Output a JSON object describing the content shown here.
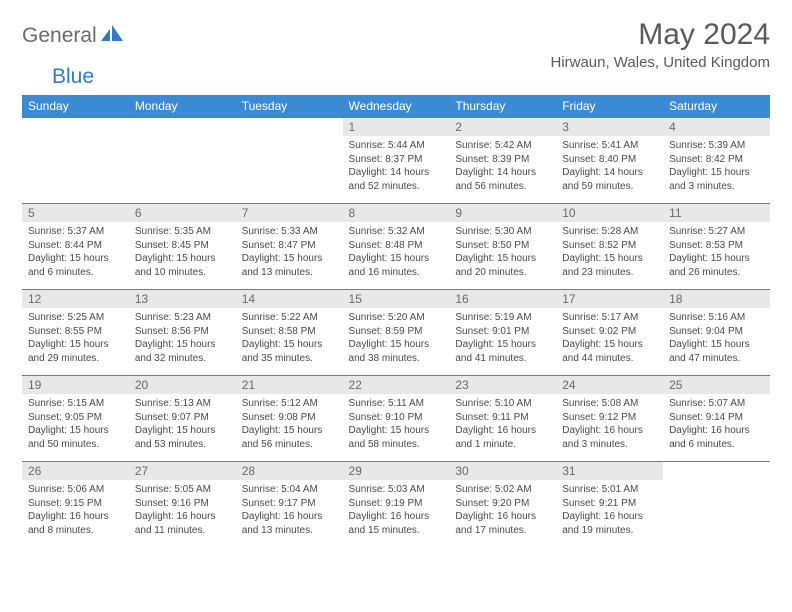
{
  "brand": {
    "part1": "General",
    "part2": "Blue"
  },
  "title": "May 2024",
  "location": "Hirwaun, Wales, United Kingdom",
  "colors": {
    "header_bg": "#3b8bd4",
    "header_text": "#ffffff",
    "daynum_bg": "#e8e8e8",
    "border": "#3b8bd4",
    "body_text": "#4a4a4a",
    "title_text": "#5a5a5a"
  },
  "weekdays": [
    "Sunday",
    "Monday",
    "Tuesday",
    "Wednesday",
    "Thursday",
    "Friday",
    "Saturday"
  ],
  "grid": [
    [
      {
        "empty": true
      },
      {
        "empty": true
      },
      {
        "empty": true
      },
      {
        "day": "1",
        "sunrise": "Sunrise: 5:44 AM",
        "sunset": "Sunset: 8:37 PM",
        "daylight": "Daylight: 14 hours and 52 minutes."
      },
      {
        "day": "2",
        "sunrise": "Sunrise: 5:42 AM",
        "sunset": "Sunset: 8:39 PM",
        "daylight": "Daylight: 14 hours and 56 minutes."
      },
      {
        "day": "3",
        "sunrise": "Sunrise: 5:41 AM",
        "sunset": "Sunset: 8:40 PM",
        "daylight": "Daylight: 14 hours and 59 minutes."
      },
      {
        "day": "4",
        "sunrise": "Sunrise: 5:39 AM",
        "sunset": "Sunset: 8:42 PM",
        "daylight": "Daylight: 15 hours and 3 minutes."
      }
    ],
    [
      {
        "day": "5",
        "sunrise": "Sunrise: 5:37 AM",
        "sunset": "Sunset: 8:44 PM",
        "daylight": "Daylight: 15 hours and 6 minutes."
      },
      {
        "day": "6",
        "sunrise": "Sunrise: 5:35 AM",
        "sunset": "Sunset: 8:45 PM",
        "daylight": "Daylight: 15 hours and 10 minutes."
      },
      {
        "day": "7",
        "sunrise": "Sunrise: 5:33 AM",
        "sunset": "Sunset: 8:47 PM",
        "daylight": "Daylight: 15 hours and 13 minutes."
      },
      {
        "day": "8",
        "sunrise": "Sunrise: 5:32 AM",
        "sunset": "Sunset: 8:48 PM",
        "daylight": "Daylight: 15 hours and 16 minutes."
      },
      {
        "day": "9",
        "sunrise": "Sunrise: 5:30 AM",
        "sunset": "Sunset: 8:50 PM",
        "daylight": "Daylight: 15 hours and 20 minutes."
      },
      {
        "day": "10",
        "sunrise": "Sunrise: 5:28 AM",
        "sunset": "Sunset: 8:52 PM",
        "daylight": "Daylight: 15 hours and 23 minutes."
      },
      {
        "day": "11",
        "sunrise": "Sunrise: 5:27 AM",
        "sunset": "Sunset: 8:53 PM",
        "daylight": "Daylight: 15 hours and 26 minutes."
      }
    ],
    [
      {
        "day": "12",
        "sunrise": "Sunrise: 5:25 AM",
        "sunset": "Sunset: 8:55 PM",
        "daylight": "Daylight: 15 hours and 29 minutes."
      },
      {
        "day": "13",
        "sunrise": "Sunrise: 5:23 AM",
        "sunset": "Sunset: 8:56 PM",
        "daylight": "Daylight: 15 hours and 32 minutes."
      },
      {
        "day": "14",
        "sunrise": "Sunrise: 5:22 AM",
        "sunset": "Sunset: 8:58 PM",
        "daylight": "Daylight: 15 hours and 35 minutes."
      },
      {
        "day": "15",
        "sunrise": "Sunrise: 5:20 AM",
        "sunset": "Sunset: 8:59 PM",
        "daylight": "Daylight: 15 hours and 38 minutes."
      },
      {
        "day": "16",
        "sunrise": "Sunrise: 5:19 AM",
        "sunset": "Sunset: 9:01 PM",
        "daylight": "Daylight: 15 hours and 41 minutes."
      },
      {
        "day": "17",
        "sunrise": "Sunrise: 5:17 AM",
        "sunset": "Sunset: 9:02 PM",
        "daylight": "Daylight: 15 hours and 44 minutes."
      },
      {
        "day": "18",
        "sunrise": "Sunrise: 5:16 AM",
        "sunset": "Sunset: 9:04 PM",
        "daylight": "Daylight: 15 hours and 47 minutes."
      }
    ],
    [
      {
        "day": "19",
        "sunrise": "Sunrise: 5:15 AM",
        "sunset": "Sunset: 9:05 PM",
        "daylight": "Daylight: 15 hours and 50 minutes."
      },
      {
        "day": "20",
        "sunrise": "Sunrise: 5:13 AM",
        "sunset": "Sunset: 9:07 PM",
        "daylight": "Daylight: 15 hours and 53 minutes."
      },
      {
        "day": "21",
        "sunrise": "Sunrise: 5:12 AM",
        "sunset": "Sunset: 9:08 PM",
        "daylight": "Daylight: 15 hours and 56 minutes."
      },
      {
        "day": "22",
        "sunrise": "Sunrise: 5:11 AM",
        "sunset": "Sunset: 9:10 PM",
        "daylight": "Daylight: 15 hours and 58 minutes."
      },
      {
        "day": "23",
        "sunrise": "Sunrise: 5:10 AM",
        "sunset": "Sunset: 9:11 PM",
        "daylight": "Daylight: 16 hours and 1 minute."
      },
      {
        "day": "24",
        "sunrise": "Sunrise: 5:08 AM",
        "sunset": "Sunset: 9:12 PM",
        "daylight": "Daylight: 16 hours and 3 minutes."
      },
      {
        "day": "25",
        "sunrise": "Sunrise: 5:07 AM",
        "sunset": "Sunset: 9:14 PM",
        "daylight": "Daylight: 16 hours and 6 minutes."
      }
    ],
    [
      {
        "day": "26",
        "sunrise": "Sunrise: 5:06 AM",
        "sunset": "Sunset: 9:15 PM",
        "daylight": "Daylight: 16 hours and 8 minutes."
      },
      {
        "day": "27",
        "sunrise": "Sunrise: 5:05 AM",
        "sunset": "Sunset: 9:16 PM",
        "daylight": "Daylight: 16 hours and 11 minutes."
      },
      {
        "day": "28",
        "sunrise": "Sunrise: 5:04 AM",
        "sunset": "Sunset: 9:17 PM",
        "daylight": "Daylight: 16 hours and 13 minutes."
      },
      {
        "day": "29",
        "sunrise": "Sunrise: 5:03 AM",
        "sunset": "Sunset: 9:19 PM",
        "daylight": "Daylight: 16 hours and 15 minutes."
      },
      {
        "day": "30",
        "sunrise": "Sunrise: 5:02 AM",
        "sunset": "Sunset: 9:20 PM",
        "daylight": "Daylight: 16 hours and 17 minutes."
      },
      {
        "day": "31",
        "sunrise": "Sunrise: 5:01 AM",
        "sunset": "Sunset: 9:21 PM",
        "daylight": "Daylight: 16 hours and 19 minutes."
      },
      {
        "empty": true
      }
    ]
  ]
}
